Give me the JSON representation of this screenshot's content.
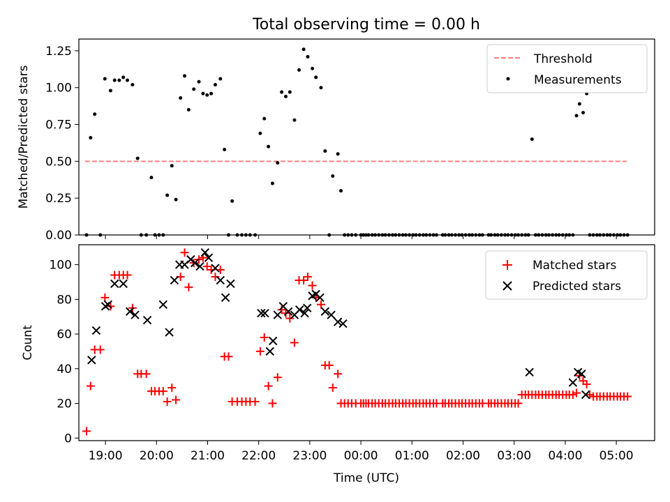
{
  "figure_title": "Total observing time = 0.00 h",
  "colors": {
    "threshold": "#ff8080",
    "measurement": "#000000",
    "matched": "#ff0000",
    "predicted": "#000000"
  },
  "chart_data": [
    {
      "type": "scatter",
      "ylabel": "Matched/Predicted stars",
      "xlabel": "",
      "xlim": [
        -0.52,
        10.75
      ],
      "ylim": [
        0,
        1.33
      ],
      "yticks": [
        "0.00",
        "0.25",
        "0.50",
        "0.75",
        "1.00",
        "1.25"
      ],
      "ytick_values": [
        0,
        0.25,
        0.5,
        0.75,
        1.0,
        1.25
      ],
      "xticks_hours": [
        0,
        1,
        2,
        3,
        4,
        5,
        6,
        7,
        8,
        9,
        10
      ],
      "legend": [
        "Threshold",
        "Measurements"
      ],
      "legend_position": "top-right",
      "threshold": {
        "name": "Threshold",
        "value": 0.5,
        "x_range": [
          -0.4,
          10.2
        ]
      },
      "series": [
        {
          "name": "Measurements",
          "x": [
            -0.37,
            -0.29,
            -0.21,
            -0.1,
            -0.01,
            0.1,
            0.18,
            0.27,
            0.35,
            0.43,
            0.53,
            0.63,
            0.7,
            0.8,
            0.9,
            0.97,
            1.05,
            1.13,
            1.21,
            1.3,
            1.38,
            1.47,
            1.55,
            1.63,
            1.73,
            1.83,
            1.91,
            1.99,
            2.07,
            2.15,
            2.25,
            2.33,
            2.41,
            2.48,
            2.58,
            2.67,
            2.75,
            2.83,
            2.93,
            3.03,
            3.11,
            3.19,
            3.27,
            3.37,
            3.45,
            3.53,
            3.61,
            3.7,
            3.79,
            3.88,
            3.96,
            4.05,
            4.12,
            4.22,
            4.3,
            4.38,
            4.45,
            4.55,
            4.61,
            4.68,
            4.75,
            4.82,
            4.9,
            5.0,
            5.05,
            5.1,
            5.15,
            5.22,
            5.28,
            5.35,
            5.42,
            5.48,
            5.55,
            5.62,
            5.68,
            5.75,
            5.82,
            5.88,
            5.95,
            6.02,
            6.08,
            6.15,
            6.22,
            6.28,
            6.35,
            6.42,
            6.48,
            6.6,
            6.65,
            6.72,
            6.78,
            6.85,
            6.92,
            6.98,
            7.05,
            7.12,
            7.18,
            7.25,
            7.32,
            7.38,
            7.5,
            7.55,
            7.62,
            7.68,
            7.75,
            7.82,
            7.88,
            7.95,
            8.02,
            8.08,
            8.15,
            8.22,
            8.28,
            8.35,
            8.42,
            8.48,
            8.55,
            8.62,
            8.68,
            8.75,
            8.82,
            8.88,
            8.95,
            9.02,
            9.08,
            9.15,
            9.22,
            9.28,
            9.35,
            9.42,
            9.48,
            9.55,
            9.62,
            9.68,
            9.75,
            9.82,
            9.88,
            9.95,
            10.02,
            10.08,
            10.15,
            10.22
          ],
          "y": [
            0.0,
            0.66,
            0.82,
            0.0,
            1.06,
            0.98,
            1.05,
            1.05,
            1.07,
            1.05,
            1.02,
            0.52,
            0.0,
            0.0,
            0.39,
            0.0,
            0.0,
            0.0,
            0.27,
            0.47,
            0.24,
            0.93,
            1.08,
            0.85,
            0.99,
            1.04,
            0.96,
            0.95,
            0.96,
            1.02,
            1.06,
            0.58,
            0.0,
            0.23,
            0.0,
            0.0,
            0.0,
            0.0,
            0.0,
            0.69,
            0.79,
            0.6,
            0.35,
            0.49,
            0.97,
            0.94,
            0.97,
            0.78,
            1.12,
            1.26,
            1.21,
            1.13,
            1.07,
            1.0,
            0.57,
            0.0,
            0.4,
            0.55,
            0.3,
            0.0,
            0.0,
            0.0,
            0.0,
            0.0,
            0.0,
            0.0,
            0.0,
            0.0,
            0.0,
            0.0,
            0.0,
            0.0,
            0.0,
            0.0,
            0.0,
            0.0,
            0.0,
            0.0,
            0.0,
            0.0,
            0.0,
            0.0,
            0.0,
            0.0,
            0.0,
            0.0,
            0.0,
            0.0,
            0.0,
            0.0,
            0.0,
            0.0,
            0.0,
            0.0,
            0.0,
            0.0,
            0.0,
            0.0,
            0.0,
            0.0,
            0.0,
            0.0,
            0.0,
            0.0,
            0.0,
            0.0,
            0.0,
            0.0,
            0.0,
            0.0,
            0.0,
            0.0,
            0.0,
            0.65,
            0.0,
            0.0,
            0.0,
            0.0,
            0.0,
            0.0,
            0.0,
            0.0,
            0.0,
            0.0,
            0.0,
            0.0,
            0.81,
            0.89,
            0.83,
            0.96,
            0.0,
            0.0,
            0.0,
            0.0,
            0.0,
            0.0,
            0.0,
            0.0,
            0.0,
            0.0,
            0.0,
            0.0
          ]
        }
      ]
    },
    {
      "type": "scatter",
      "ylabel": "Count",
      "xlabel": "Time (UTC)",
      "xlim": [
        -0.52,
        10.75
      ],
      "ylim": [
        -1.5,
        111.5
      ],
      "yticks": [
        "0",
        "20",
        "40",
        "60",
        "80",
        "100"
      ],
      "ytick_values": [
        0,
        20,
        40,
        60,
        80,
        100
      ],
      "xticks": [
        "19:00",
        "20:00",
        "21:00",
        "22:00",
        "23:00",
        "00:00",
        "01:00",
        "02:00",
        "03:00",
        "04:00",
        "05:00"
      ],
      "xtick_values": [
        0,
        1,
        2,
        3,
        4,
        5,
        6,
        7,
        8,
        9,
        10
      ],
      "legend": [
        "Matched stars",
        "Predicted stars"
      ],
      "legend_position": "top-right",
      "series": [
        {
          "name": "Matched stars",
          "marker": "+",
          "x": [
            -0.37,
            -0.29,
            -0.21,
            -0.1,
            -0.01,
            0.1,
            0.18,
            0.27,
            0.35,
            0.43,
            0.53,
            0.63,
            0.7,
            0.8,
            0.9,
            0.97,
            1.05,
            1.13,
            1.21,
            1.3,
            1.38,
            1.47,
            1.55,
            1.63,
            1.73,
            1.83,
            1.91,
            1.99,
            2.07,
            2.15,
            2.25,
            2.33,
            2.41,
            2.48,
            2.58,
            2.67,
            2.75,
            2.83,
            2.93,
            3.03,
            3.11,
            3.19,
            3.27,
            3.37,
            3.45,
            3.53,
            3.61,
            3.7,
            3.79,
            3.88,
            3.96,
            4.05,
            4.12,
            4.22,
            4.3,
            4.38,
            4.45,
            4.55,
            4.61,
            4.68,
            4.75,
            4.82,
            4.9,
            5.0,
            5.05,
            5.1,
            5.15,
            5.22,
            5.28,
            5.35,
            5.42,
            5.48,
            5.55,
            5.62,
            5.68,
            5.75,
            5.82,
            5.88,
            5.95,
            6.02,
            6.08,
            6.15,
            6.22,
            6.28,
            6.35,
            6.42,
            6.48,
            6.6,
            6.65,
            6.72,
            6.78,
            6.85,
            6.92,
            6.98,
            7.05,
            7.12,
            7.18,
            7.25,
            7.32,
            7.38,
            7.5,
            7.55,
            7.62,
            7.68,
            7.75,
            7.82,
            7.88,
            7.95,
            8.02,
            8.08,
            8.15,
            8.22,
            8.28,
            8.35,
            8.42,
            8.48,
            8.55,
            8.62,
            8.68,
            8.75,
            8.82,
            8.88,
            8.95,
            9.02,
            9.08,
            9.15,
            9.22,
            9.28,
            9.35,
            9.42,
            9.48,
            9.55,
            9.62,
            9.68,
            9.75,
            9.82,
            9.88,
            9.95,
            10.02,
            10.08,
            10.15,
            10.22
          ],
          "y": [
            4,
            30,
            51,
            51,
            81,
            76,
            94,
            94,
            94,
            94,
            75,
            37,
            37,
            37,
            27,
            27,
            27,
            27,
            21,
            29,
            22,
            93,
            107,
            87,
            101,
            103,
            104,
            99,
            97,
            93,
            97,
            47,
            47,
            21,
            21,
            21,
            21,
            21,
            21,
            50,
            58,
            30,
            20,
            35,
            74,
            72,
            69,
            55,
            91,
            91,
            93,
            88,
            81,
            77,
            42,
            42,
            29,
            37,
            20,
            20,
            20,
            20,
            20,
            20,
            20,
            20,
            20,
            20,
            20,
            20,
            20,
            20,
            20,
            20,
            20,
            20,
            20,
            20,
            20,
            20,
            20,
            20,
            20,
            20,
            20,
            20,
            20,
            20,
            20,
            20,
            20,
            20,
            20,
            20,
            20,
            20,
            20,
            20,
            20,
            20,
            20,
            20,
            20,
            20,
            20,
            20,
            20,
            20,
            20,
            20,
            25,
            25,
            25,
            25,
            25,
            25,
            25,
            25,
            25,
            25,
            25,
            25,
            25,
            25,
            25,
            25,
            26,
            36,
            33,
            31,
            25,
            24,
            24,
            24,
            24,
            24,
            24,
            24,
            24,
            24,
            24,
            24
          ]
        },
        {
          "name": "Predicted stars",
          "marker": "x",
          "x": [
            -0.27,
            -0.18,
            0.0,
            0.05,
            0.18,
            0.35,
            0.48,
            0.58,
            0.82,
            1.13,
            1.25,
            1.35,
            1.45,
            1.55,
            1.67,
            1.75,
            1.85,
            1.95,
            2.02,
            2.15,
            2.25,
            2.35,
            2.45,
            3.05,
            3.12,
            3.22,
            3.28,
            3.37,
            3.48,
            3.58,
            3.7,
            3.8,
            3.9,
            3.95,
            4.05,
            4.12,
            4.2,
            4.3,
            4.42,
            4.55,
            4.65,
            8.3,
            9.15,
            9.25,
            9.32,
            9.4
          ],
          "y": [
            45,
            62,
            76,
            77,
            89,
            89,
            73,
            71,
            68,
            77,
            61,
            91,
            100,
            100,
            103,
            101,
            99,
            107,
            104,
            98,
            91,
            81,
            89,
            72,
            72,
            50,
            56,
            71,
            76,
            73,
            71,
            74,
            72,
            75,
            82,
            83,
            81,
            73,
            71,
            67,
            66,
            38,
            32,
            38,
            37,
            25
          ]
        }
      ]
    }
  ]
}
